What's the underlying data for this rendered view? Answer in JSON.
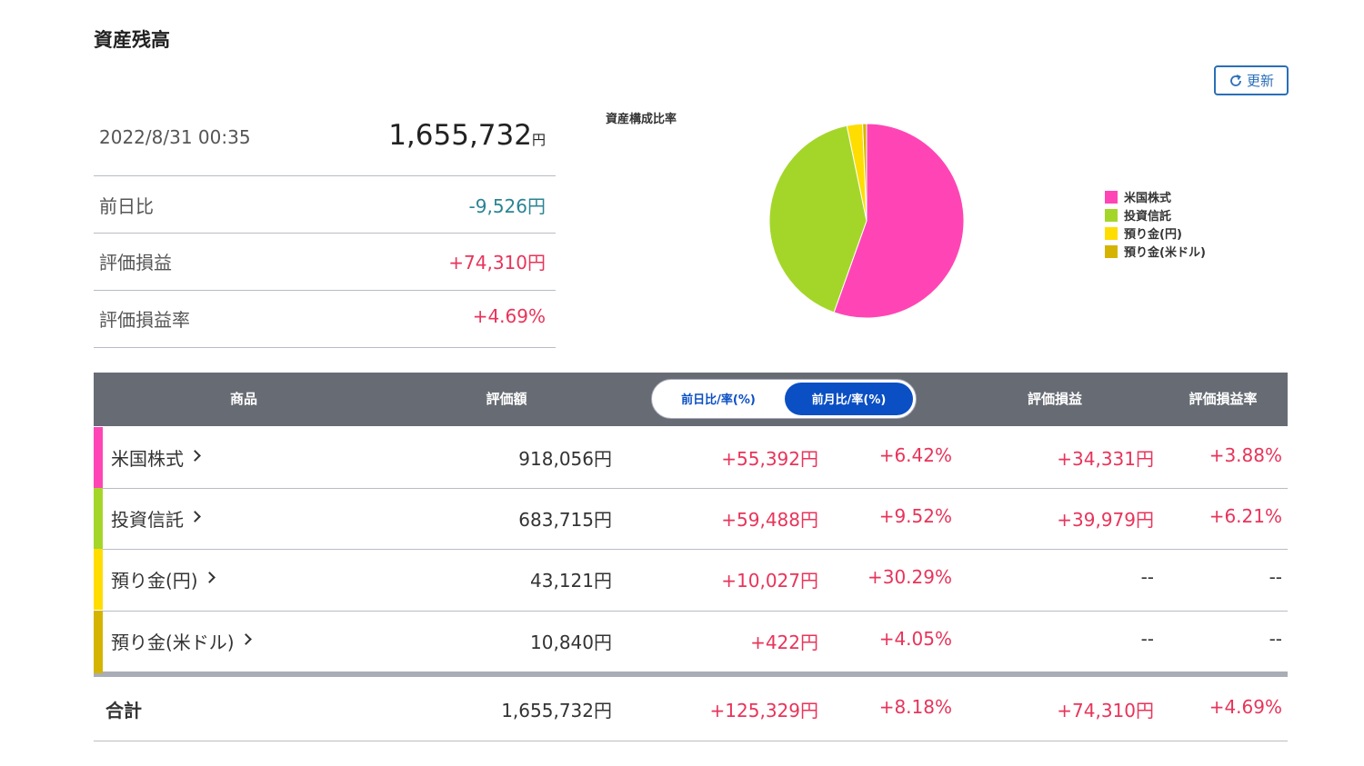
{
  "header": {
    "title": "資産残高",
    "refresh": "更新"
  },
  "summary": {
    "datetime": "2022/8/31 00:35",
    "total": "1,655,732",
    "total_unit": "円",
    "rows": [
      {
        "label": "前日比",
        "value": "-9,526円"
      },
      {
        "label": "評価損益",
        "value": "+74,310円"
      },
      {
        "label": "評価損益率",
        "value": "+4.69%"
      }
    ]
  },
  "chart_data": {
    "type": "pie",
    "title": "資産構成比率",
    "categories": [
      "米国株式",
      "投資信託",
      "預り金(円)",
      "預り金(米ドル)"
    ],
    "values": [
      918056,
      683715,
      43121,
      10840
    ],
    "colors": [
      "#ff45b5",
      "#a4d62a",
      "#ffdd00",
      "#d4b400"
    ],
    "legend": "right"
  },
  "table": {
    "columns": [
      "商品",
      "評価額",
      "前日比/率(%)",
      "前月比/率(%)",
      "評価損益",
      "評価損益率"
    ],
    "rows": [
      [
        "米国株式",
        "918,056円",
        "+55,392円",
        "+6.42%",
        "+34,331円",
        "+3.88%"
      ],
      [
        "投資信託",
        "683,715円",
        "+59,488円",
        "+9.52%",
        "+39,979円",
        "+6.21%"
      ],
      [
        "預り金(円)",
        "43,121円",
        "+10,027円",
        "+30.29%",
        "--",
        "--"
      ],
      [
        "預り金(米ドル)",
        "10,840円",
        "+422円",
        "+4.05%",
        "--",
        "--"
      ]
    ],
    "total": [
      "合計",
      "1,655,732円",
      "+125,329円",
      "+8.18%",
      "+74,310円",
      "+4.69%"
    ]
  }
}
